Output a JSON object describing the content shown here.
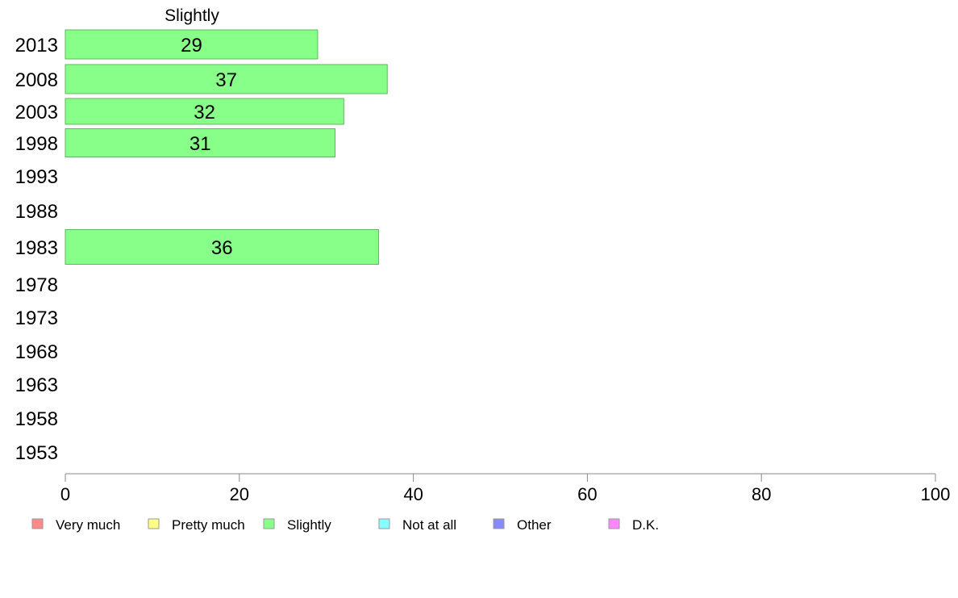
{
  "chart_data": {
    "type": "bar",
    "orientation": "horizontal",
    "series_title": "Slightly",
    "categories": [
      "2013",
      "2008",
      "2003",
      "1998",
      "1993",
      "1988",
      "1983",
      "1978",
      "1973",
      "1968",
      "1963",
      "1958",
      "1953"
    ],
    "series": [
      {
        "name": "Slightly",
        "color": "#88ff88",
        "values": [
          29,
          37,
          32,
          31,
          null,
          null,
          36,
          null,
          null,
          null,
          null,
          null,
          null
        ]
      }
    ],
    "xlim": [
      0,
      100
    ],
    "xticks": [
      0,
      20,
      40,
      60,
      80,
      100
    ],
    "grid": false,
    "legend_position": "bottom",
    "legend": [
      {
        "label": "Very much",
        "color": "#ff8888"
      },
      {
        "label": "Pretty much",
        "color": "#ffff88"
      },
      {
        "label": "Slightly",
        "color": "#88ff88"
      },
      {
        "label": "Not at all",
        "color": "#88ffff"
      },
      {
        "label": "Other",
        "color": "#8888ff"
      },
      {
        "label": "D.K.",
        "color": "#ff88ff"
      }
    ]
  }
}
